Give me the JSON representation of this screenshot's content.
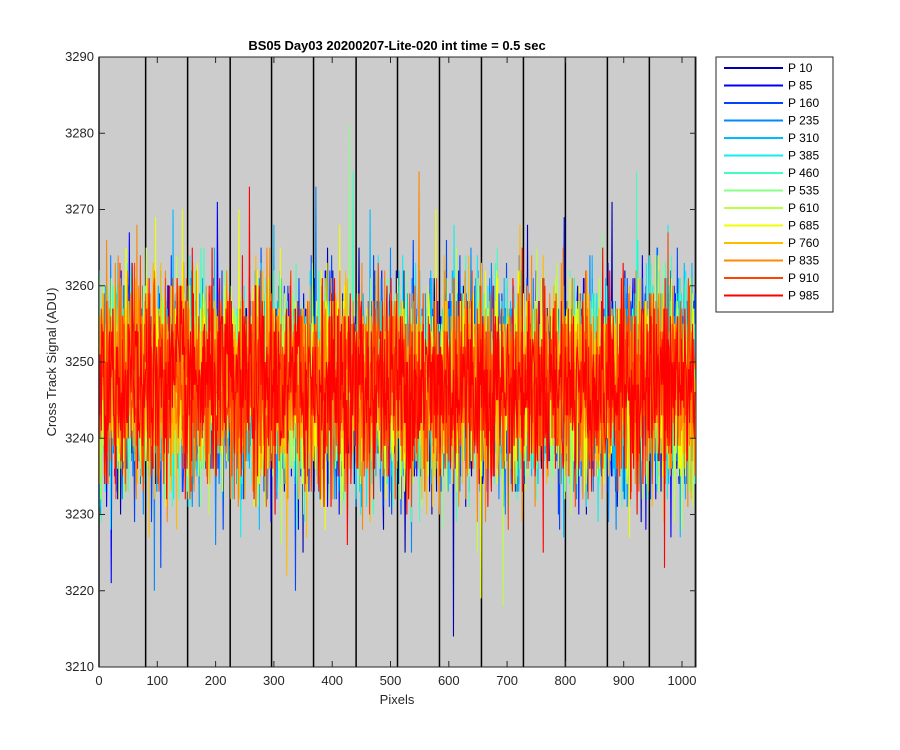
{
  "chart_data": {
    "type": "line",
    "title": "BS05 Day03 20200207-Lite-020 int time = 0.5 sec",
    "xlabel": "Pixels",
    "ylabel": "Cross Track Signal (ADU)",
    "xlim": [
      0,
      1024
    ],
    "ylim": [
      3210,
      3290
    ],
    "xticks": [
      0,
      100,
      200,
      300,
      400,
      500,
      600,
      700,
      800,
      900,
      1000
    ],
    "yticks": [
      3210,
      3220,
      3230,
      3240,
      3250,
      3260,
      3270,
      3280,
      3290
    ],
    "background_color": "#cccccc",
    "vertical_markers": [
      0,
      80,
      152,
      225,
      296,
      368,
      441,
      512,
      584,
      656,
      728,
      800,
      872,
      944,
      1023
    ],
    "noise": {
      "mean": 3247,
      "typical_low": 3234,
      "typical_high": 3261,
      "n_points": 1024
    },
    "legend_position": "outside-right",
    "series": [
      {
        "name": "P 10",
        "color": "#0000b0"
      },
      {
        "name": "P 85",
        "color": "#0000ff"
      },
      {
        "name": "P 160",
        "color": "#0044ff"
      },
      {
        "name": "P 235",
        "color": "#0088ff"
      },
      {
        "name": "P 310",
        "color": "#00bbff"
      },
      {
        "name": "P 385",
        "color": "#11eeee"
      },
      {
        "name": "P 460",
        "color": "#44ffbb"
      },
      {
        "name": "P 535",
        "color": "#88ff88"
      },
      {
        "name": "P 610",
        "color": "#bbff44"
      },
      {
        "name": "P 685",
        "color": "#eeff00"
      },
      {
        "name": "P 760",
        "color": "#ffbb00"
      },
      {
        "name": "P 835",
        "color": "#ff8800"
      },
      {
        "name": "P 910",
        "color": "#ff4400"
      },
      {
        "name": "P 985",
        "color": "#ff0000"
      }
    ],
    "spikes": [
      {
        "x": 608,
        "y": 3214,
        "series": 0
      },
      {
        "x": 337,
        "y": 3220,
        "series": 2
      },
      {
        "x": 693,
        "y": 3218,
        "series": 8
      },
      {
        "x": 430,
        "y": 3281,
        "series": 7
      },
      {
        "x": 258,
        "y": 3273,
        "series": 13
      },
      {
        "x": 922,
        "y": 3275,
        "series": 6
      },
      {
        "x": 798,
        "y": 3269,
        "series": 1
      },
      {
        "x": 203,
        "y": 3271,
        "series": 1
      },
      {
        "x": 372,
        "y": 3273,
        "series": 3
      },
      {
        "x": 97,
        "y": 3269,
        "series": 9
      },
      {
        "x": 143,
        "y": 3270,
        "series": 9
      },
      {
        "x": 880,
        "y": 3271,
        "series": 0
      },
      {
        "x": 655,
        "y": 3219,
        "series": 9
      },
      {
        "x": 970,
        "y": 3223,
        "series": 13
      },
      {
        "x": 322,
        "y": 3222,
        "series": 10
      },
      {
        "x": 95,
        "y": 3220,
        "series": 3
      }
    ]
  }
}
